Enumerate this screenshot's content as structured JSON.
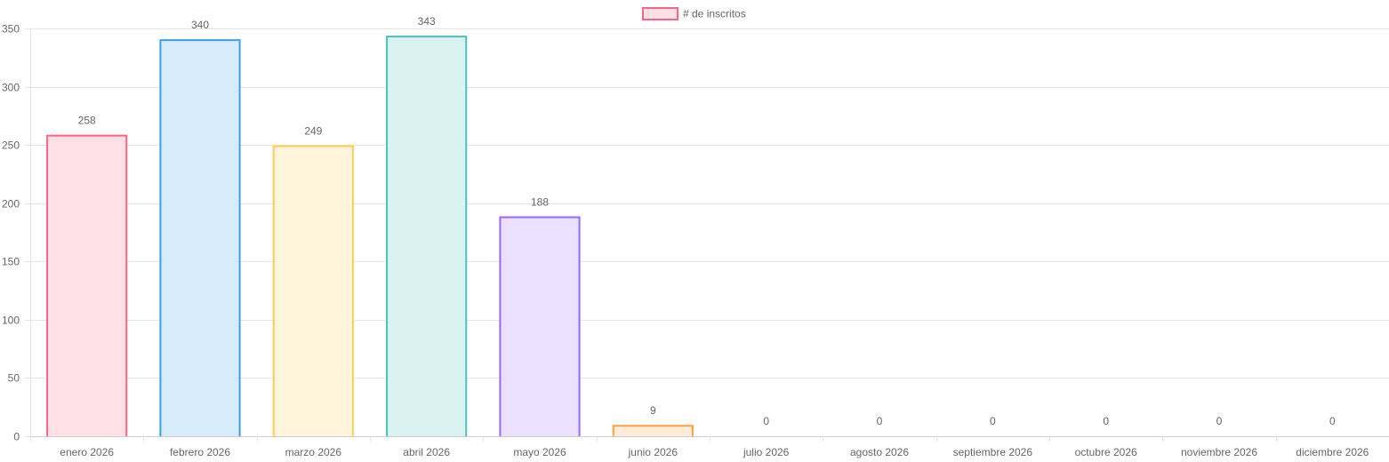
{
  "chart_data": {
    "type": "bar",
    "title": "",
    "xlabel": "",
    "ylabel": "",
    "legend": {
      "position": "top",
      "label": "# de inscritos"
    },
    "categories": [
      "enero 2026",
      "febrero 2026",
      "marzo 2026",
      "abril 2026",
      "mayo 2026",
      "junio 2026",
      "julio 2026",
      "agosto 2026",
      "septiembre 2026",
      "octubre 2026",
      "noviembre 2026",
      "diciembre 2026"
    ],
    "series": [
      {
        "name": "# de inscritos",
        "values": [
          258,
          340,
          249,
          343,
          188,
          9,
          0,
          0,
          0,
          0,
          0,
          0
        ]
      }
    ],
    "ylim": [
      0,
      350
    ],
    "yticks": [
      0,
      50,
      100,
      150,
      200,
      250,
      300,
      350
    ],
    "grid": true,
    "data_labels": true,
    "colors": {
      "fills": [
        "#ffe0e6",
        "#d7ecfb",
        "#fff5dd",
        "#dbf2f2",
        "#ebe0ff",
        "#ffecd9",
        "#f4f5f5",
        "#ffe0e6",
        "#d7ecfb",
        "#fff5dd",
        "#dbf2f2",
        "#ebe0ff"
      ],
      "strokes": [
        "#ff6384",
        "#36a2eb",
        "#ffcd56",
        "#4bc0c0",
        "#9966ff",
        "#ff9f40",
        "#c9cbcf",
        "#ff6384",
        "#36a2eb",
        "#ffcd56",
        "#4bc0c0",
        "#9966ff"
      ]
    }
  }
}
